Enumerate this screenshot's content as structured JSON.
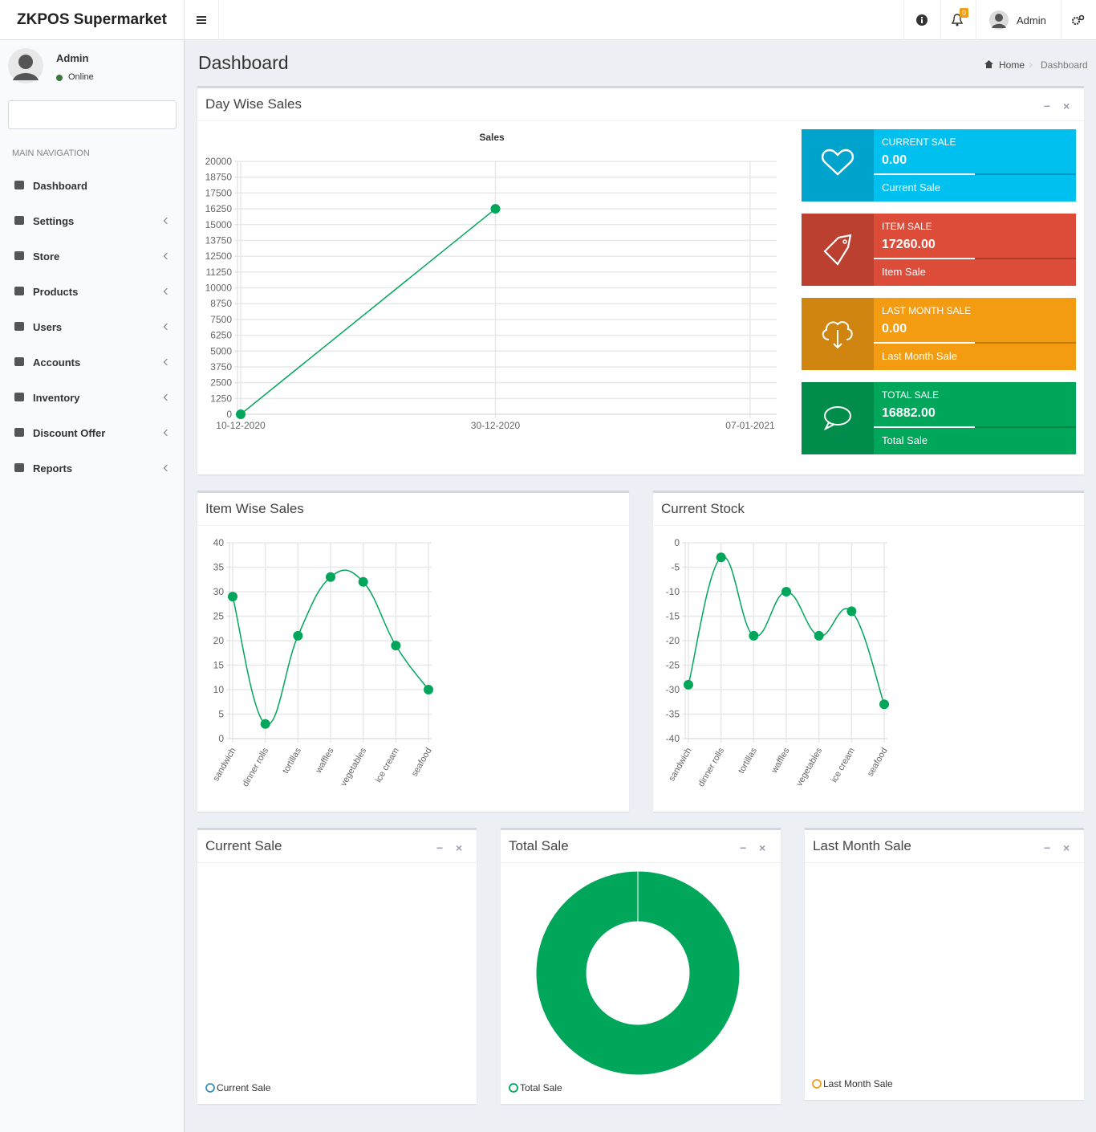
{
  "header": {
    "brand": "ZKPOS Supermarket",
    "notifications": 0,
    "user": "Admin"
  },
  "sidebar": {
    "user": "Admin",
    "status": "Online",
    "nav_title": "MAIN NAVIGATION",
    "items": [
      "Dashboard",
      "Settings",
      "Store",
      "Products",
      "Users",
      "Accounts",
      "Inventory",
      "Discount Offer",
      "Reports"
    ]
  },
  "page": {
    "title": "Dashboard",
    "breadcrumb": [
      "Home",
      "Dashboard"
    ]
  },
  "info_boxes": [
    {
      "label": "CURRENT SALE",
      "value": "0.00",
      "description": "Current Sale"
    },
    {
      "label": "ITEM SALE",
      "value": "17260.00",
      "description": "Item Sale"
    },
    {
      "label": "LAST MONTH SALE",
      "value": "0.00",
      "description": "Last Month Sale"
    },
    {
      "label": "TOTAL SALE",
      "value": "16882.00",
      "description": "Total Sale"
    }
  ],
  "chart_data": [
    {
      "type": "line",
      "box_title": "Day Wise Sales",
      "title": "Sales",
      "categories": [
        "10-12-2020",
        "30-12-2020",
        "07-01-2021"
      ],
      "values": [
        0,
        16250,
        null
      ],
      "color": "#00a65a",
      "smooth": false,
      "ylim": [
        0,
        20000
      ],
      "yticks": [
        0,
        1250,
        2500,
        3750,
        5000,
        6250,
        7500,
        8750,
        10000,
        11250,
        12500,
        13750,
        15000,
        16250,
        17500,
        18750,
        20000
      ],
      "grid": true
    },
    {
      "type": "line",
      "box_title": "Item Wise Sales",
      "categories": [
        "sandwich",
        "dinner rolls",
        "tortillas",
        "waffles",
        "vegetables",
        "ice cream",
        "seafood"
      ],
      "values": [
        29,
        3,
        21,
        33,
        32,
        19,
        10
      ],
      "color": "#00a65a",
      "smooth": true,
      "ylim": [
        0,
        40
      ],
      "yticks": [
        0,
        5,
        10,
        15,
        20,
        25,
        30,
        35,
        40
      ],
      "grid": true
    },
    {
      "type": "line",
      "box_title": "Current Stock",
      "categories": [
        "sandwich",
        "dinner rolls",
        "tortillas",
        "waffles",
        "vegetables",
        "ice cream",
        "seafood"
      ],
      "values": [
        -29,
        -3,
        -19,
        -10,
        -19,
        -14,
        -33
      ],
      "color": "#00a65a",
      "smooth": true,
      "ylim": [
        -40,
        0
      ],
      "yticks": [
        -40,
        -35,
        -30,
        -25,
        -20,
        -15,
        -10,
        -5,
        0
      ],
      "grid": true
    },
    {
      "type": "doughnut",
      "box_title": "Current Sale",
      "categories": [
        "Current Sale"
      ],
      "values": [
        0
      ],
      "colors": [
        "#3c8dbc"
      ]
    },
    {
      "type": "doughnut",
      "box_title": "Total Sale",
      "categories": [
        "Total Sale"
      ],
      "values": [
        16882
      ],
      "colors": [
        "#00a65a"
      ]
    },
    {
      "type": "doughnut",
      "box_title": "Last Month Sale",
      "categories": [
        "Last Month Sale"
      ],
      "values": [
        0
      ],
      "colors": [
        "#f39c12"
      ]
    }
  ]
}
